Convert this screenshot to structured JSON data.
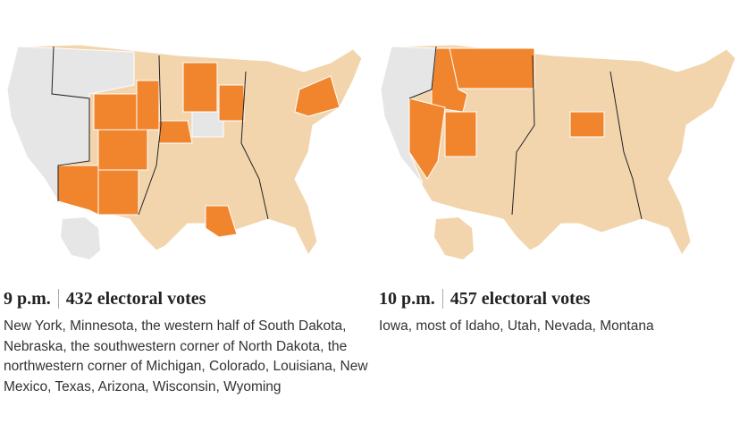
{
  "panels": [
    {
      "time": "9 p.m.",
      "votes": "432 electoral votes",
      "description": "New York, Minnesota, the western half of South Dakota, Nebraska, the southwestern corner of North Dakota, the northwestern corner of Michigan, Colorado, Louisiana, New Mexico, Texas, Arizona, Wisconsin, Wyoming"
    },
    {
      "time": "10 p.m.",
      "votes": "457 electoral votes",
      "description": "Iowa, most of Idaho, Utah, Nevada, Montana"
    }
  ]
}
